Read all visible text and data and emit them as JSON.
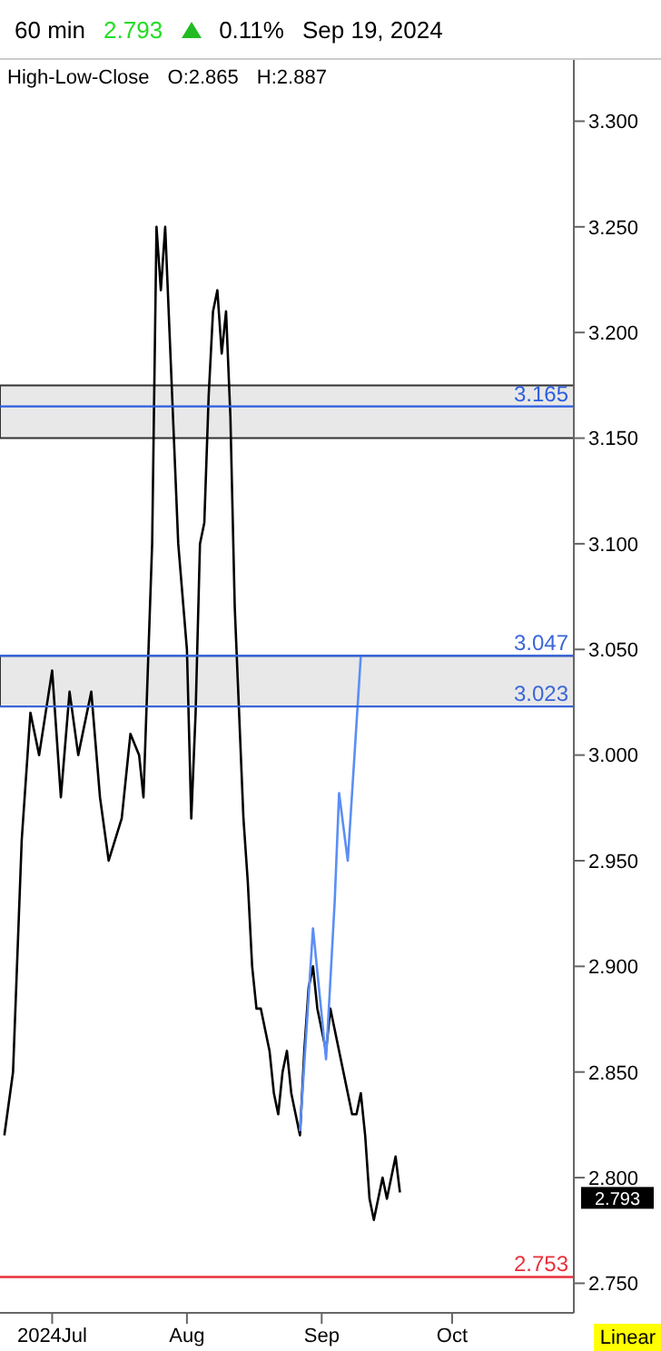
{
  "chart_data": {
    "type": "line",
    "title": "60 min",
    "annotations": [
      "2.793",
      "0.11%",
      "Sep 19, 2024",
      "High-Low-Close",
      "O:2.865",
      "H:2.887",
      "Linear",
      "2.793"
    ],
    "xlim": [
      "2024-06-19",
      "2024-10-29"
    ],
    "xticks": [
      {
        "value": "2024-07-01",
        "label": "2024Jul"
      },
      {
        "value": "2024-08-01",
        "label": "Aug"
      },
      {
        "value": "2024-09-01",
        "label": "Sep"
      },
      {
        "value": "2024-10-01",
        "label": "Oct"
      }
    ],
    "ylim": [
      2.736,
      3.329
    ],
    "yticks": [
      {
        "value": 2.75,
        "label": "2.750"
      },
      {
        "value": 2.8,
        "label": "2.800"
      },
      {
        "value": 2.85,
        "label": "2.850"
      },
      {
        "value": 2.9,
        "label": "2.900"
      },
      {
        "value": 2.95,
        "label": "2.950"
      },
      {
        "value": 3.0,
        "label": "3.000"
      },
      {
        "value": 3.05,
        "label": "3.050"
      },
      {
        "value": 3.1,
        "label": "3.100"
      },
      {
        "value": 3.15,
        "label": "3.150"
      },
      {
        "value": 3.2,
        "label": "3.200"
      },
      {
        "value": 3.25,
        "label": "3.250"
      },
      {
        "value": 3.3,
        "label": "3.300"
      }
    ],
    "grid": false,
    "legend": false,
    "marker": "none",
    "line_style": "solid",
    "series": [
      {
        "color": "#000000",
        "x": [
          "2024-06-20",
          "2024-06-22",
          "2024-06-24",
          "2024-06-26",
          "2024-06-28",
          "2024-07-01",
          "2024-07-03",
          "2024-07-05",
          "2024-07-07",
          "2024-07-10",
          "2024-07-12",
          "2024-07-14",
          "2024-07-17",
          "2024-07-19",
          "2024-07-21",
          "2024-07-22",
          "2024-07-24",
          "2024-07-25",
          "2024-07-26",
          "2024-07-27",
          "2024-07-28",
          "2024-07-29",
          "2024-07-30",
          "2024-08-01",
          "2024-08-02",
          "2024-08-03",
          "2024-08-04",
          "2024-08-05",
          "2024-08-06",
          "2024-08-07",
          "2024-08-08",
          "2024-08-09",
          "2024-08-10",
          "2024-08-11",
          "2024-08-12",
          "2024-08-13",
          "2024-08-14",
          "2024-08-15",
          "2024-08-16",
          "2024-08-17",
          "2024-08-18",
          "2024-08-19",
          "2024-08-20",
          "2024-08-21",
          "2024-08-22",
          "2024-08-23",
          "2024-08-24",
          "2024-08-25",
          "2024-08-26",
          "2024-08-27",
          "2024-08-28",
          "2024-08-29",
          "2024-08-30",
          "2024-08-31",
          "2024-09-01",
          "2024-09-02",
          "2024-09-03",
          "2024-09-04",
          "2024-09-05",
          "2024-09-06",
          "2024-09-07",
          "2024-09-08",
          "2024-09-09",
          "2024-09-10",
          "2024-09-11",
          "2024-09-12",
          "2024-09-13",
          "2024-09-14",
          "2024-09-15",
          "2024-09-16",
          "2024-09-17",
          "2024-09-18",
          "2024-09-19"
        ],
        "values": [
          2.82,
          2.85,
          2.96,
          3.02,
          3.0,
          3.04,
          2.98,
          3.03,
          3.0,
          3.03,
          2.98,
          2.95,
          2.97,
          3.01,
          3.0,
          2.98,
          3.1,
          3.25,
          3.22,
          3.25,
          3.2,
          3.15,
          3.1,
          3.05,
          2.97,
          3.02,
          3.1,
          3.11,
          3.17,
          3.21,
          3.22,
          3.19,
          3.21,
          3.16,
          3.07,
          3.02,
          2.97,
          2.94,
          2.9,
          2.88,
          2.88,
          2.87,
          2.86,
          2.84,
          2.83,
          2.85,
          2.86,
          2.84,
          2.83,
          2.82,
          2.86,
          2.89,
          2.9,
          2.88,
          2.87,
          2.86,
          2.88,
          2.87,
          2.86,
          2.85,
          2.84,
          2.83,
          2.83,
          2.84,
          2.82,
          2.79,
          2.78,
          2.79,
          2.8,
          2.79,
          2.8,
          2.81,
          2.793
        ]
      },
      {
        "color": "#5b8ef5",
        "x": [
          "2024-08-27",
          "2024-08-30",
          "2024-09-02",
          "2024-09-04",
          "2024-09-05",
          "2024-09-07",
          "2024-09-10"
        ],
        "values": [
          2.822,
          2.918,
          2.856,
          2.931,
          2.982,
          2.95,
          3.047
        ]
      }
    ],
    "ref_lines": [
      {
        "axis": "y",
        "value": 3.165,
        "label": "3.165",
        "color": "#2c5ee0"
      },
      {
        "axis": "y",
        "value": 3.047,
        "label": "3.047",
        "color": "#3a66d8"
      },
      {
        "axis": "y",
        "value": 3.023,
        "label": "3.023",
        "color": "#3a66d8"
      },
      {
        "axis": "y",
        "value": 2.753,
        "label": "2.753",
        "color": "#e8303a"
      }
    ],
    "bands": [
      {
        "axis": "y",
        "from": 3.15,
        "to": 3.175,
        "color": "#e8e8e8"
      },
      {
        "axis": "y",
        "from": 3.023,
        "to": 3.047,
        "color": "#e8e8e8"
      }
    ]
  }
}
